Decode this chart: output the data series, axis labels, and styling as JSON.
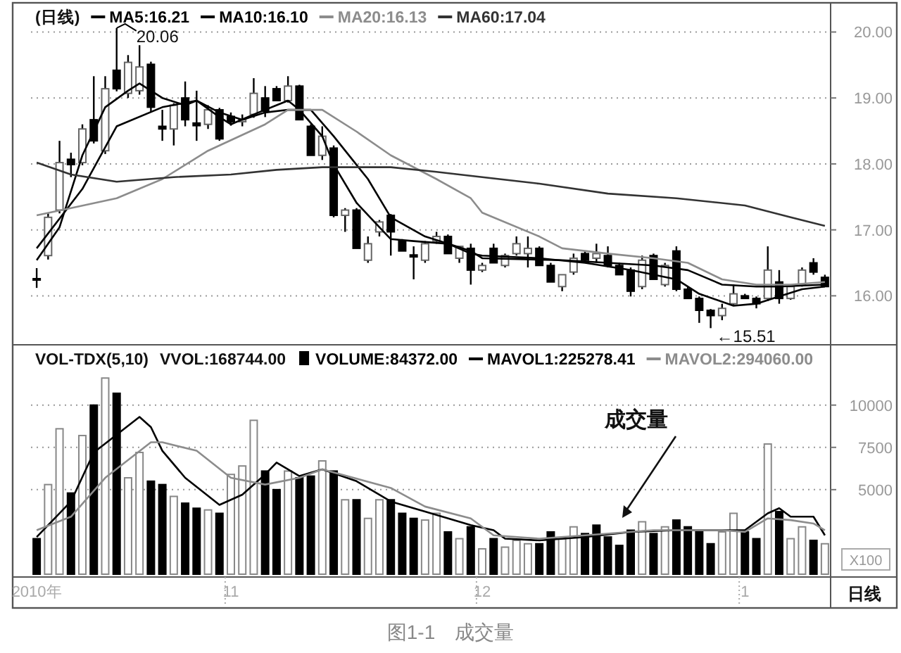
{
  "chart_data": [
    {
      "type": "candlestick",
      "title": "(日线)",
      "tick_labels": "y",
      "grid": "y",
      "legend": "top left",
      "categories": [
        null,
        null,
        null,
        null,
        null,
        null,
        null,
        null,
        null,
        null,
        null,
        null,
        null,
        null,
        null,
        null,
        null,
        null,
        null,
        null,
        null,
        null,
        null,
        null,
        null,
        null,
        null,
        null,
        null,
        null,
        null,
        null,
        null,
        null,
        null,
        null,
        null,
        null,
        null,
        null,
        null,
        null,
        null,
        null,
        null,
        null,
        null,
        null,
        null,
        null,
        null,
        null,
        null,
        null,
        null,
        null,
        null,
        null,
        null,
        null,
        null,
        null,
        null,
        null,
        null,
        null,
        null,
        null,
        null,
        null
      ],
      "ohlc": [
        [
          16.26,
          16.42,
          16.12,
          16.24
        ],
        [
          16.61,
          17.25,
          16.55,
          17.19
        ],
        [
          17.3,
          18.35,
          17.25,
          18.02
        ],
        [
          18.07,
          18.17,
          17.8,
          17.99
        ],
        [
          18.02,
          18.6,
          17.98,
          18.53
        ],
        [
          18.67,
          19.33,
          18.31,
          18.35
        ],
        [
          18.2,
          19.33,
          18.15,
          19.14
        ],
        [
          19.42,
          20.06,
          19.1,
          19.14
        ],
        [
          19.07,
          19.65,
          19.0,
          19.54
        ],
        [
          19.11,
          19.8,
          19.05,
          19.47
        ],
        [
          19.51,
          19.55,
          18.78,
          18.86
        ],
        [
          18.57,
          18.82,
          18.35,
          18.53
        ],
        [
          18.53,
          18.92,
          18.28,
          18.89
        ],
        [
          19.0,
          19.25,
          18.57,
          18.67
        ],
        [
          18.62,
          19.11,
          18.35,
          18.58
        ],
        [
          18.6,
          18.89,
          18.53,
          18.82
        ],
        [
          18.82,
          18.85,
          18.35,
          18.38
        ],
        [
          18.72,
          18.78,
          18.58,
          18.64
        ],
        [
          18.64,
          18.75,
          18.57,
          18.67
        ],
        [
          18.75,
          19.3,
          18.7,
          19.07
        ],
        [
          19.0,
          19.18,
          18.71,
          18.8
        ],
        [
          19.14,
          19.18,
          18.96,
          18.96
        ],
        [
          18.96,
          19.33,
          18.93,
          19.18
        ],
        [
          19.18,
          19.2,
          18.67,
          18.67
        ],
        [
          18.57,
          18.6,
          18.13,
          18.13
        ],
        [
          18.13,
          18.57,
          18.06,
          18.42
        ],
        [
          18.24,
          18.28,
          17.19,
          17.22
        ],
        [
          17.22,
          17.33,
          16.97,
          17.3
        ],
        [
          17.3,
          17.33,
          16.72,
          16.72
        ],
        [
          16.54,
          16.9,
          16.5,
          16.79
        ],
        [
          16.97,
          17.15,
          16.9,
          17.12
        ],
        [
          17.22,
          17.24,
          16.61,
          16.97
        ],
        [
          16.83,
          16.86,
          16.68,
          16.68
        ],
        [
          16.62,
          16.75,
          16.25,
          16.59
        ],
        [
          16.54,
          16.83,
          16.5,
          16.79
        ],
        [
          16.83,
          16.97,
          16.79,
          16.9
        ],
        [
          16.9,
          16.93,
          16.64,
          16.64
        ],
        [
          16.57,
          16.75,
          16.5,
          16.75
        ],
        [
          16.72,
          16.79,
          16.17,
          16.39
        ],
        [
          16.39,
          16.5,
          16.36,
          16.46
        ],
        [
          16.72,
          16.79,
          16.5,
          16.5
        ],
        [
          16.46,
          16.64,
          16.43,
          16.61
        ],
        [
          16.64,
          16.9,
          16.61,
          16.79
        ],
        [
          16.64,
          16.9,
          16.43,
          16.72
        ],
        [
          16.72,
          16.75,
          16.46,
          16.46
        ],
        [
          16.46,
          16.5,
          16.21,
          16.21
        ],
        [
          16.14,
          16.32,
          16.07,
          16.32
        ],
        [
          16.36,
          16.64,
          16.32,
          16.57
        ],
        [
          16.64,
          16.68,
          16.5,
          16.54
        ],
        [
          16.57,
          16.79,
          16.5,
          16.64
        ],
        [
          16.61,
          16.75,
          16.43,
          16.46
        ],
        [
          16.46,
          16.5,
          16.32,
          16.32
        ],
        [
          16.39,
          16.43,
          15.99,
          16.07
        ],
        [
          16.14,
          16.61,
          16.1,
          16.54
        ],
        [
          16.61,
          16.64,
          16.25,
          16.25
        ],
        [
          16.17,
          16.5,
          16.14,
          16.46
        ],
        [
          16.68,
          16.75,
          16.07,
          16.1
        ],
        [
          16.1,
          16.14,
          15.96,
          15.96
        ],
        [
          15.96,
          15.99,
          15.59,
          15.78
        ],
        [
          15.78,
          15.8,
          15.51,
          15.7
        ],
        [
          15.7,
          15.88,
          15.63,
          15.81
        ],
        [
          15.88,
          16.17,
          15.85,
          16.03
        ],
        [
          16.0,
          16.03,
          15.96,
          15.96
        ],
        [
          15.96,
          15.99,
          15.81,
          15.88
        ],
        [
          15.96,
          16.75,
          15.92,
          16.39
        ],
        [
          16.21,
          16.39,
          15.88,
          15.96
        ],
        [
          15.96,
          16.14,
          15.94,
          16.14
        ],
        [
          16.17,
          16.43,
          16.14,
          16.39
        ],
        [
          16.5,
          16.57,
          16.32,
          16.36
        ],
        [
          16.28,
          16.32,
          16.14,
          16.14
        ]
      ],
      "series": [
        {
          "name": "MA5:16.21",
          "type": "line",
          "color": "#000000",
          "values": [
            16.54,
            null,
            17.04,
            null,
            18.13,
            null,
            18.86,
            null,
            19.11,
            19.22,
            null,
            19.0,
            null,
            18.89,
            18.96,
            null,
            18.71,
            18.6,
            null,
            18.75,
            null,
            18.89,
            18.96,
            18.82,
            null,
            18.42,
            17.99,
            null,
            17.41,
            null,
            17.04,
            16.86,
            null,
            16.83,
            null,
            null,
            16.79,
            null,
            16.64,
            16.61,
            null,
            null,
            null,
            null,
            16.57,
            null,
            null,
            null,
            16.5,
            null,
            null,
            null,
            16.39,
            null,
            null,
            null,
            16.25,
            null,
            16.03,
            null,
            null,
            15.85,
            null,
            15.88,
            null,
            15.99,
            null,
            16.1,
            null,
            16.14
          ]
        },
        {
          "name": "MA10:16.10",
          "type": "line",
          "color": "#000000",
          "values": [
            16.72,
            null,
            null,
            null,
            17.62,
            null,
            null,
            18.57,
            null,
            null,
            null,
            18.86,
            null,
            null,
            18.96,
            null,
            18.78,
            null,
            18.67,
            null,
            18.78,
            null,
            18.82,
            null,
            18.82,
            null,
            18.42,
            null,
            null,
            17.77,
            null,
            17.19,
            null,
            null,
            16.9,
            null,
            16.79,
            null,
            16.68,
            16.57,
            null,
            null,
            null,
            null,
            null,
            null,
            16.54,
            null,
            null,
            null,
            16.5,
            null,
            null,
            null,
            16.46,
            null,
            null,
            16.39,
            null,
            null,
            16.17,
            null,
            null,
            16.14,
            null,
            16.14,
            null,
            null,
            null,
            16.17
          ]
        },
        {
          "name": "MA20:16.13",
          "type": "line",
          "color": "#8c8c8c",
          "values": [
            17.22,
            null,
            null,
            17.33,
            null,
            null,
            null,
            17.48,
            null,
            null,
            null,
            17.77,
            null,
            null,
            null,
            18.2,
            null,
            null,
            null,
            null,
            18.6,
            null,
            18.82,
            null,
            null,
            18.82,
            null,
            null,
            18.49,
            null,
            null,
            18.13,
            null,
            null,
            null,
            17.77,
            null,
            null,
            17.48,
            17.26,
            null,
            null,
            null,
            null,
            16.9,
            null,
            16.72,
            null,
            null,
            null,
            16.64,
            null,
            null,
            null,
            16.57,
            null,
            null,
            16.5,
            null,
            null,
            16.25,
            null,
            null,
            16.17,
            null,
            null,
            16.17,
            null,
            null,
            16.21
          ]
        },
        {
          "name": "MA60:17.04",
          "type": "line",
          "color": "#333333",
          "values": [
            18.02,
            null,
            null,
            17.84,
            null,
            null,
            null,
            17.73,
            null,
            null,
            null,
            null,
            17.8,
            null,
            null,
            null,
            null,
            17.84,
            null,
            null,
            null,
            17.91,
            null,
            null,
            null,
            17.95,
            null,
            null,
            null,
            null,
            null,
            17.95,
            null,
            null,
            null,
            17.88,
            null,
            17.84,
            null,
            null,
            null,
            null,
            null,
            null,
            17.7,
            null,
            null,
            null,
            null,
            null,
            17.55,
            null,
            null,
            null,
            null,
            null,
            17.48,
            null,
            null,
            null,
            null,
            null,
            17.37,
            null,
            null,
            null,
            17.19,
            null,
            null,
            17.06
          ]
        }
      ],
      "ylim": [
        15.3,
        20.4
      ],
      "yticks": [
        {
          "value": 16,
          "label": "16.00"
        },
        {
          "value": 17,
          "label": "17.00"
        },
        {
          "value": 18,
          "label": "18.00"
        },
        {
          "value": 19,
          "label": "19.00"
        },
        {
          "value": 20,
          "label": "20.00"
        }
      ],
      "annotations": [
        "20.06",
        "←15.51"
      ]
    },
    {
      "type": "bar",
      "title": "VOL-TDX(5,10)",
      "grid": "y",
      "legend": "top",
      "categories": [
        "2010年",
        null,
        null,
        null,
        null,
        null,
        null,
        null,
        null,
        null,
        null,
        null,
        null,
        null,
        null,
        null,
        null,
        "11",
        null,
        null,
        null,
        null,
        null,
        null,
        null,
        null,
        null,
        null,
        null,
        null,
        null,
        null,
        null,
        null,
        null,
        null,
        null,
        null,
        null,
        "12",
        null,
        null,
        null,
        null,
        null,
        null,
        null,
        null,
        null,
        null,
        null,
        null,
        null,
        null,
        null,
        null,
        null,
        null,
        null,
        null,
        null,
        null,
        "1",
        null,
        null,
        null,
        null,
        null,
        null,
        null
      ],
      "series": [
        {
          "name": "VOLUME:84372.00",
          "values": [
            2100,
            5300,
            8600,
            4800,
            8200,
            10000,
            11600,
            10700,
            5700,
            7200,
            5500,
            5300,
            4600,
            4200,
            3900,
            3800,
            3600,
            5900,
            6400,
            9100,
            6100,
            5000,
            6100,
            5700,
            5800,
            6700,
            6100,
            4400,
            4400,
            3300,
            4400,
            4400,
            3600,
            3300,
            3200,
            3600,
            2500,
            2100,
            2800,
            1500,
            2100,
            1600,
            2000,
            1800,
            1800,
            2500,
            2100,
            2800,
            2400,
            2900,
            2200,
            1700,
            2600,
            3100,
            2400,
            2800,
            3200,
            2800,
            2500,
            1800,
            2500,
            3600,
            2500,
            2100,
            7700,
            3700,
            2100,
            2800,
            2000,
            1800
          ],
          "colors": [
            "#000000",
            "#ffffff",
            "#ffffff",
            "#000000",
            "#ffffff",
            "#000000",
            "#ffffff",
            "#000000",
            "#ffffff",
            "#ffffff",
            "#000000",
            "#000000",
            "#ffffff",
            "#000000",
            "#000000",
            "#ffffff",
            "#000000",
            "#ffffff",
            "#ffffff",
            "#ffffff",
            "#000000",
            "#000000",
            "#ffffff",
            "#000000",
            "#000000",
            "#ffffff",
            "#000000",
            "#ffffff",
            "#000000",
            "#ffffff",
            "#ffffff",
            "#000000",
            "#000000",
            "#000000",
            "#ffffff",
            "#ffffff",
            "#000000",
            "#ffffff",
            "#000000",
            "#ffffff",
            "#000000",
            "#ffffff",
            "#ffffff",
            "#ffffff",
            "#000000",
            "#000000",
            "#ffffff",
            "#ffffff",
            "#000000",
            "#000000",
            "#000000",
            "#000000",
            "#000000",
            "#ffffff",
            "#000000",
            "#ffffff",
            "#000000",
            "#000000",
            "#000000",
            "#000000",
            "#ffffff",
            "#ffffff",
            "#000000",
            "#000000",
            "#ffffff",
            "#000000",
            "#ffffff",
            "#ffffff",
            "#000000",
            "#ffffff"
          ]
        },
        {
          "name": "MAVOL1:225278.41",
          "type": "line",
          "color": "#000000",
          "values": [
            2200,
            null,
            null,
            4300,
            null,
            7200,
            null,
            null,
            null,
            9300,
            8700,
            7300,
            null,
            5700,
            null,
            null,
            4100,
            null,
            4700,
            null,
            5900,
            6600,
            null,
            5800,
            null,
            6200,
            null,
            null,
            5500,
            null,
            null,
            4300,
            null,
            null,
            3700,
            null,
            null,
            null,
            2900,
            null,
            2600,
            2100,
            null,
            null,
            2000,
            null,
            null,
            null,
            2200,
            null,
            null,
            null,
            2500,
            null,
            null,
            null,
            2600,
            null,
            null,
            null,
            2600,
            null,
            2600,
            null,
            3600,
            3900,
            3400,
            null,
            3400,
            2300
          ]
        },
        {
          "name": "MAVOL2:294060.00",
          "type": "line",
          "color": "#8c8c8c",
          "values": [
            2600,
            null,
            null,
            3400,
            null,
            null,
            5700,
            null,
            null,
            null,
            7800,
            7800,
            null,
            null,
            7300,
            null,
            null,
            5700,
            null,
            null,
            5300,
            null,
            null,
            5700,
            null,
            6200,
            null,
            null,
            null,
            null,
            null,
            5100,
            null,
            null,
            4000,
            null,
            null,
            null,
            3300,
            null,
            2300,
            null,
            null,
            null,
            2100,
            null,
            null,
            null,
            2300,
            null,
            null,
            null,
            null,
            null,
            2600,
            null,
            null,
            null,
            null,
            null,
            2600,
            null,
            2500,
            null,
            3300,
            null,
            3200,
            null,
            3000,
            2600
          ]
        }
      ],
      "ylim": [
        0,
        13400
      ],
      "yticks": [
        5000,
        7500,
        10000
      ],
      "annotations": [
        "VVOL:168744.00",
        "成交量",
        "X100",
        "日线",
        "图1-1　成交量"
      ]
    }
  ]
}
